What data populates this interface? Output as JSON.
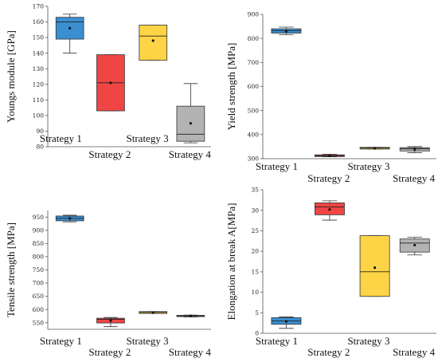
{
  "colors": {
    "strategy1": "#3a8fd1",
    "strategy2": "#f04545",
    "strategy3": "#fdd445",
    "strategy4": "#b3b3b3"
  },
  "chart_data": [
    {
      "type": "box",
      "ylabel": "Youngs module  [GPa]",
      "ylim": [
        80,
        170
      ],
      "yticks": [
        80,
        90,
        100,
        110,
        120,
        130,
        140,
        150,
        160,
        170
      ],
      "categories": [
        "Strategy 1",
        "Strategy 2",
        "Strategy 3",
        "Strategy 4"
      ],
      "boxes": [
        {
          "min": 140,
          "q1": 149,
          "median": 160,
          "q3": 163,
          "max": 165,
          "mean": 156
        },
        {
          "min": 103,
          "q1": 103,
          "median": 121,
          "q3": 139,
          "max": 139,
          "mean": 121
        },
        {
          "min": 135.5,
          "q1": 135.5,
          "median": 151,
          "q3": 158,
          "max": 158,
          "mean": 148
        },
        {
          "min": 82.5,
          "q1": 83.5,
          "median": 88,
          "q3": 106,
          "max": 120.5,
          "mean": 95
        }
      ]
    },
    {
      "type": "box",
      "ylabel": "Yield strength [MPa]",
      "ylim": [
        300,
        900
      ],
      "yticks": [
        300,
        400,
        500,
        600,
        700,
        800,
        900
      ],
      "categories": [
        "Strategy 1",
        "Strategy 2",
        "Strategy 3",
        "Strategy 4"
      ],
      "boxes": [
        {
          "min": 815,
          "q1": 822,
          "median": 832,
          "q3": 840,
          "max": 847,
          "mean": 830
        },
        {
          "min": 308,
          "q1": 309,
          "median": 312,
          "q3": 316,
          "max": 318,
          "mean": 312
        },
        {
          "min": 340,
          "q1": 340,
          "median": 344,
          "q3": 347,
          "max": 347,
          "mean": 343
        },
        {
          "min": 325,
          "q1": 332,
          "median": 341,
          "q3": 346,
          "max": 350,
          "mean": 339
        }
      ]
    },
    {
      "type": "box",
      "ylabel": "Tensile strength [MPa]",
      "ylim": [
        525,
        975
      ],
      "yticks": [
        550,
        600,
        650,
        700,
        750,
        800,
        850,
        900,
        950
      ],
      "categories": [
        "Strategy 1",
        "Strategy 2",
        "Strategy 3",
        "Strategy 4"
      ],
      "boxes": [
        {
          "min": 932,
          "q1": 936,
          "median": 945,
          "q3": 954,
          "max": 957,
          "mean": 945
        },
        {
          "min": 535,
          "q1": 549,
          "median": 563,
          "q3": 567,
          "max": 570,
          "mean": 558
        },
        {
          "min": 585,
          "q1": 585,
          "median": 589,
          "q3": 592,
          "max": 592,
          "mean": 588
        },
        {
          "min": 572,
          "q1": 573,
          "median": 576,
          "q3": 578,
          "max": 579,
          "mean": 576
        }
      ]
    },
    {
      "type": "box",
      "ylabel": "Elongation at break A[MPa]",
      "ylim": [
        0,
        35
      ],
      "yticks": [
        0,
        5,
        10,
        15,
        20,
        25,
        30,
        35
      ],
      "categories": [
        "Strategy 1",
        "Strategy 2",
        "Strategy 3",
        "Strategy 4"
      ],
      "boxes": [
        {
          "min": 1.2,
          "q1": 2.2,
          "median": 3.0,
          "q3": 3.8,
          "max": 4.0,
          "mean": 2.9
        },
        {
          "min": 27.6,
          "q1": 28.9,
          "median": 30.8,
          "q3": 31.8,
          "max": 32.3,
          "mean": 30.2
        },
        {
          "min": 9.0,
          "q1": 9.0,
          "median": 15.0,
          "q3": 23.8,
          "max": 23.8,
          "mean": 16.0
        },
        {
          "min": 19.1,
          "q1": 19.8,
          "median": 22.0,
          "q3": 23.0,
          "max": 23.4,
          "mean": 21.5
        }
      ]
    }
  ]
}
